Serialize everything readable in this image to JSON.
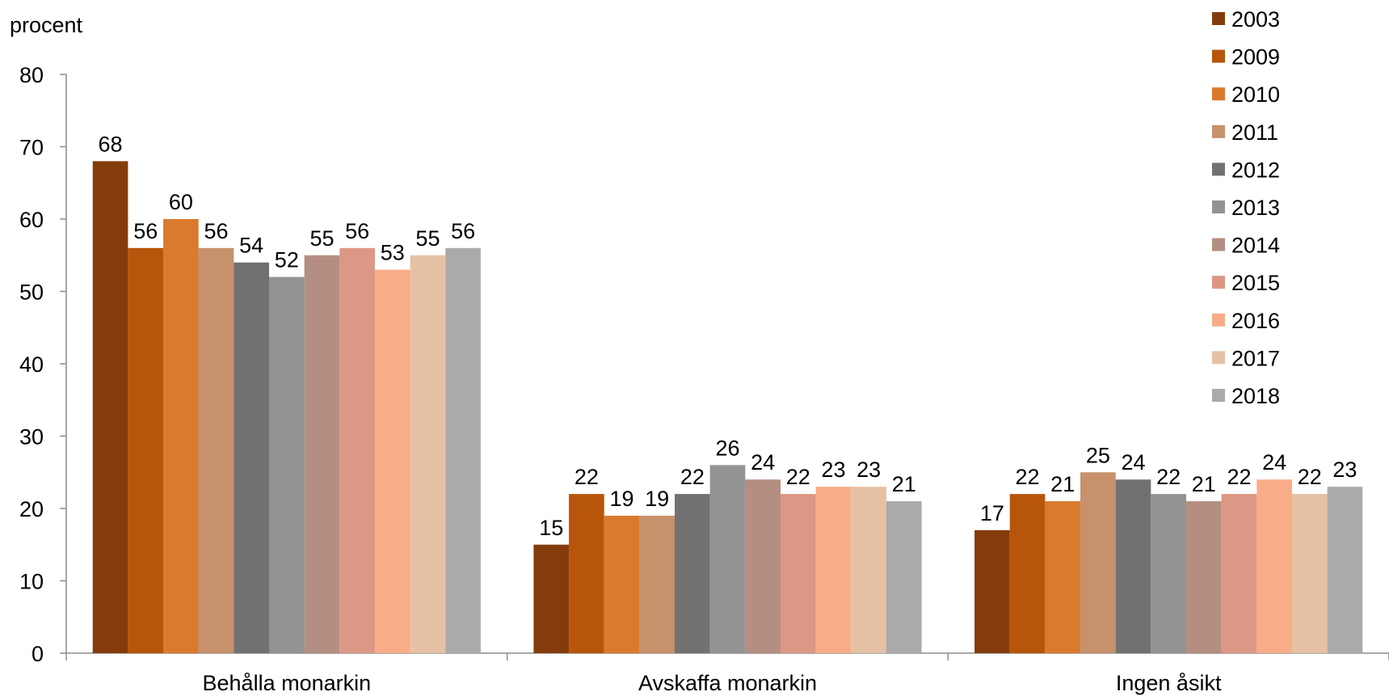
{
  "chart_data": {
    "type": "bar",
    "ylabel": "procent",
    "ylim": [
      0,
      80
    ],
    "yticks": [
      "0",
      "10",
      "20",
      "30",
      "40",
      "50",
      "60",
      "70",
      "80"
    ],
    "categories": [
      "Behålla monarkin",
      "Avskaffa monarkin",
      "Ingen åsikt"
    ],
    "series": [
      {
        "name": "2003",
        "color": "#843C0C",
        "values": [
          68,
          15,
          17
        ]
      },
      {
        "name": "2009",
        "color": "#B7560A",
        "values": [
          56,
          22,
          22
        ]
      },
      {
        "name": "2010",
        "color": "#DA7A2E",
        "values": [
          60,
          19,
          21
        ]
      },
      {
        "name": "2011",
        "color": "#C6916B",
        "values": [
          56,
          19,
          25
        ]
      },
      {
        "name": "2012",
        "color": "#717171",
        "values": [
          54,
          22,
          24
        ]
      },
      {
        "name": "2013",
        "color": "#939393",
        "values": [
          52,
          26,
          22
        ]
      },
      {
        "name": "2014",
        "color": "#B58E82",
        "values": [
          55,
          24,
          21
        ]
      },
      {
        "name": "2015",
        "color": "#DC9884",
        "values": [
          56,
          22,
          22
        ]
      },
      {
        "name": "2016",
        "color": "#F8AD88",
        "values": [
          53,
          23,
          24
        ]
      },
      {
        "name": "2017",
        "color": "#E6C1A5",
        "values": [
          55,
          23,
          22
        ]
      },
      {
        "name": "2018",
        "color": "#AAAAAA",
        "values": [
          56,
          21,
          23
        ]
      }
    ],
    "legend_position": "top-right",
    "grid": false,
    "show_data_labels": true
  }
}
